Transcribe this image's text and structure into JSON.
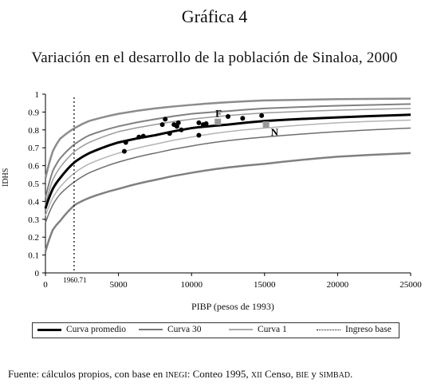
{
  "figure_label": "Gráfica 4",
  "chart_data": {
    "type": "line",
    "title": "Variación en el desarrollo de la población de Sinaloa, 2000",
    "xlabel": "PIBP (pesos de 1993)",
    "ylabel": "IDHS",
    "xlim": [
      0,
      25000
    ],
    "ylim": [
      0,
      1
    ],
    "x_ticks": [
      "0",
      "5000",
      "10000",
      "15000",
      "20000",
      "25000"
    ],
    "y_ticks": [
      "0",
      "0.1",
      "0.2",
      "0.3",
      "0.4",
      "0.5",
      "0.6",
      "0.7",
      "0.8",
      "0.9",
      "1"
    ],
    "grid": false,
    "legend_position": "bottom",
    "vline": {
      "x": 1960.71,
      "label": "1960.71"
    },
    "series": [
      {
        "name": "Curva promedio",
        "style": "thick-black",
        "x": [
          0,
          500,
          1000,
          2000,
          3000,
          5000,
          7500,
          10000,
          12500,
          15000,
          20000,
          25000
        ],
        "y": [
          0.36,
          0.47,
          0.53,
          0.62,
          0.67,
          0.73,
          0.77,
          0.81,
          0.83,
          0.85,
          0.87,
          0.885
        ]
      },
      {
        "name": "Curva 30",
        "style": "gray",
        "x": [
          0,
          500,
          1000,
          2000,
          3000,
          5000,
          7500,
          10000,
          12500,
          15000,
          20000,
          25000
        ],
        "y": [
          0.42,
          0.57,
          0.64,
          0.72,
          0.77,
          0.82,
          0.86,
          0.89,
          0.905,
          0.92,
          0.935,
          0.945
        ]
      },
      {
        "name": "Curva 1",
        "style": "lightgray",
        "x": [
          0,
          500,
          1000,
          2000,
          3000,
          5000,
          7500,
          10000,
          12500,
          15000,
          20000,
          25000
        ],
        "y": [
          0.32,
          0.42,
          0.48,
          0.56,
          0.61,
          0.67,
          0.72,
          0.76,
          0.79,
          0.81,
          0.84,
          0.855
        ]
      },
      {
        "name": "",
        "style": "gray-outer",
        "x": [
          0,
          500,
          1000,
          2000,
          3000,
          5000,
          7500,
          10000,
          12500,
          15000,
          20000,
          25000
        ],
        "y": [
          0.53,
          0.68,
          0.75,
          0.81,
          0.85,
          0.89,
          0.92,
          0.94,
          0.955,
          0.965,
          0.972,
          0.975
        ]
      },
      {
        "name": "",
        "style": "gray-mid-upper",
        "x": [
          0,
          500,
          1000,
          2000,
          3000,
          5000,
          7500,
          10000,
          12500,
          15000,
          20000,
          25000
        ],
        "y": [
          0.38,
          0.52,
          0.59,
          0.68,
          0.73,
          0.79,
          0.83,
          0.86,
          0.88,
          0.895,
          0.91,
          0.92
        ]
      },
      {
        "name": "",
        "style": "gray-mid-lower",
        "x": [
          0,
          500,
          1000,
          2000,
          3000,
          5000,
          7500,
          10000,
          12500,
          15000,
          20000,
          25000
        ],
        "y": [
          0.28,
          0.38,
          0.44,
          0.51,
          0.56,
          0.62,
          0.67,
          0.71,
          0.74,
          0.76,
          0.79,
          0.81
        ]
      },
      {
        "name": "",
        "style": "gray-outer-low",
        "x": [
          0,
          500,
          1000,
          2000,
          3000,
          5000,
          7500,
          10000,
          12500,
          15000,
          20000,
          25000
        ],
        "y": [
          0.12,
          0.24,
          0.29,
          0.38,
          0.42,
          0.47,
          0.52,
          0.56,
          0.59,
          0.61,
          0.65,
          0.67
        ]
      }
    ],
    "points": [
      {
        "x": 5400,
        "y": 0.68
      },
      {
        "x": 5500,
        "y": 0.73
      },
      {
        "x": 6400,
        "y": 0.76
      },
      {
        "x": 6700,
        "y": 0.765
      },
      {
        "x": 8000,
        "y": 0.83
      },
      {
        "x": 8200,
        "y": 0.86
      },
      {
        "x": 8500,
        "y": 0.78
      },
      {
        "x": 8800,
        "y": 0.83
      },
      {
        "x": 9000,
        "y": 0.82
      },
      {
        "x": 9100,
        "y": 0.84
      },
      {
        "x": 9300,
        "y": 0.8
      },
      {
        "x": 10500,
        "y": 0.77
      },
      {
        "x": 10500,
        "y": 0.84
      },
      {
        "x": 10800,
        "y": 0.83
      },
      {
        "x": 11000,
        "y": 0.835
      },
      {
        "x": 12500,
        "y": 0.875
      },
      {
        "x": 13500,
        "y": 0.865
      },
      {
        "x": 14800,
        "y": 0.88
      }
    ],
    "highlighted_points": [
      {
        "label": "F",
        "x": 11800,
        "y": 0.845
      },
      {
        "label": "N",
        "x": 15100,
        "y": 0.83
      }
    ]
  },
  "legend": {
    "items": [
      "Curva promedio",
      "Curva 30",
      "Curva 1",
      "Ingreso base"
    ]
  },
  "footer": {
    "prefix": "Fuente: cálculos propios, con base en ",
    "src1": "INEGI",
    "mid1": ": Conteo 1995, ",
    "src2": "XII",
    "mid2": " Censo, ",
    "src3": "BIE",
    "mid3": " y ",
    "src4": "SIMBAD",
    "suffix": "."
  }
}
